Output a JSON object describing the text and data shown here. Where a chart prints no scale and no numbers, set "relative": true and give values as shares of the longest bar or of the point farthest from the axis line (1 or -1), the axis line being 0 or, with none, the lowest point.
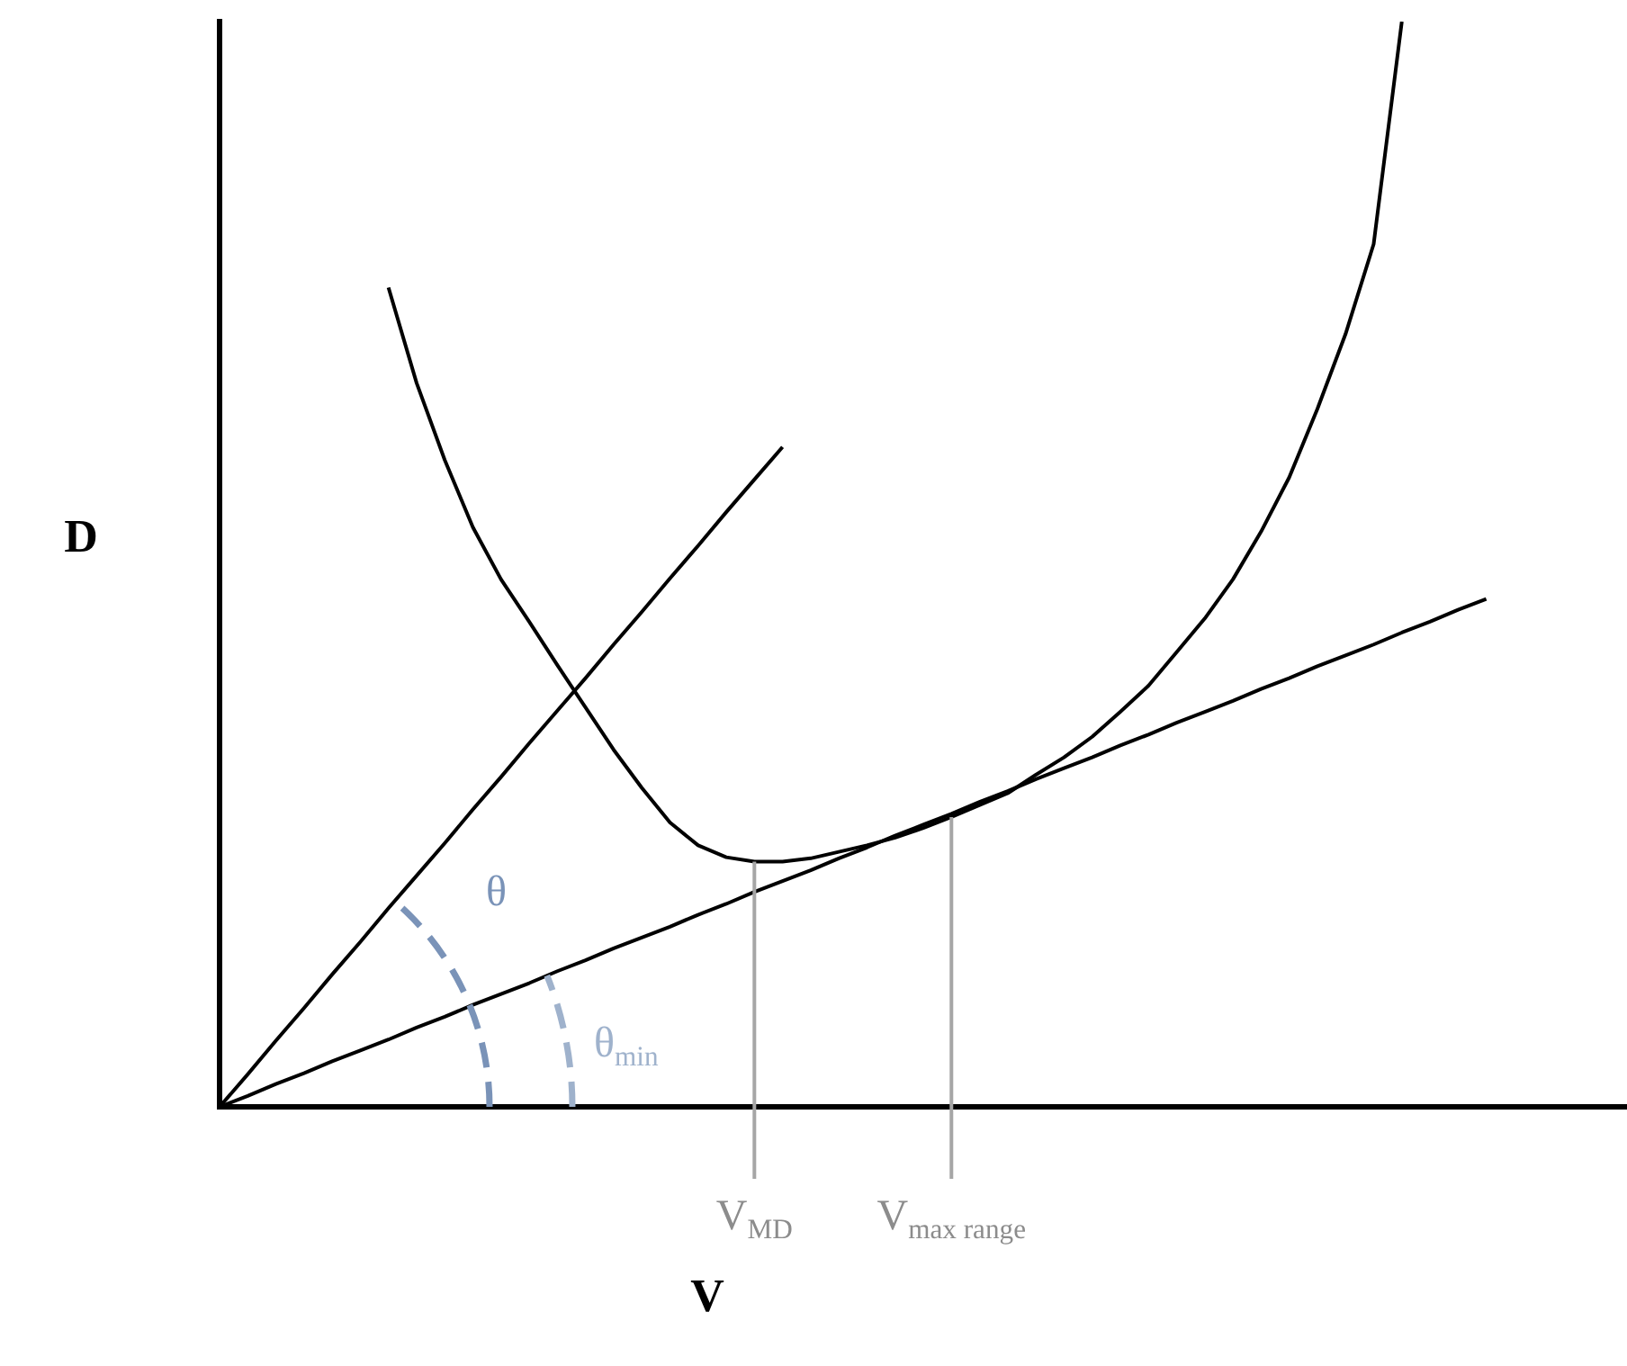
{
  "chart_data": {
    "type": "line",
    "relative": true,
    "xlabel": "V",
    "ylabel": "D",
    "grid": false,
    "legend": false,
    "marker": "none",
    "line_style": "solid",
    "categories": [
      null,
      null,
      null,
      null,
      null,
      null,
      null,
      null,
      null,
      null,
      null,
      null,
      null,
      null,
      null,
      null,
      null,
      null,
      null,
      "V$_{MD}$",
      null,
      null,
      null,
      null,
      null,
      null,
      "V$_{max range}$",
      null,
      null,
      null,
      null,
      null,
      null,
      null,
      null,
      null,
      null,
      null,
      null,
      null,
      null,
      null,
      null,
      null,
      null,
      null,
      null,
      null,
      null,
      null,
      null
    ],
    "series": [
      {
        "color": "#000000",
        "values": [
          null,
          null,
          null,
          null,
          null,
          null,
          0.755,
          0.667,
          0.596,
          0.534,
          0.486,
          0.447,
          0.407,
          0.368,
          0.329,
          0.294,
          0.262,
          0.241,
          0.23,
          0.226,
          0.226,
          0.229,
          0.235,
          0.241,
          0.248,
          0.257,
          0.267,
          0.278,
          0.289,
          0.306,
          0.322,
          0.341,
          0.364,
          0.388,
          0.419,
          0.45,
          0.486,
          0.53,
          0.58,
          0.643,
          0.712,
          0.795,
          1.0,
          null,
          null,
          null,
          null,
          null,
          null,
          null,
          null
        ]
      },
      {
        "color": "#000000",
        "values": [
          0,
          0.03,
          0.061,
          0.091,
          0.122,
          0.152,
          0.183,
          0.213,
          0.243,
          0.274,
          0.304,
          0.335,
          0.365,
          0.395,
          0.426,
          0.456,
          0.487,
          0.517,
          0.548,
          0.578,
          0.608,
          null,
          null,
          null,
          null,
          null,
          null,
          null,
          null,
          null,
          null,
          null,
          null,
          null,
          null,
          null,
          null,
          null,
          null,
          null,
          null,
          null,
          null,
          null,
          null,
          null,
          null,
          null,
          null,
          null,
          null
        ]
      },
      {
        "color": "#000000",
        "values": [
          0,
          0.01,
          0.021,
          0.031,
          0.042,
          0.052,
          0.062,
          0.073,
          0.083,
          0.094,
          0.104,
          0.114,
          0.125,
          0.135,
          0.146,
          0.156,
          0.166,
          0.177,
          0.187,
          0.198,
          0.208,
          0.218,
          0.229,
          0.239,
          0.25,
          0.26,
          0.27,
          0.281,
          0.291,
          0.302,
          0.312,
          0.322,
          0.333,
          0.343,
          0.354,
          0.364,
          0.374,
          0.385,
          0.395,
          0.406,
          0.416,
          0.426,
          0.437,
          0.447,
          0.458,
          0.468,
          null,
          null,
          null,
          null,
          null
        ]
      }
    ],
    "ref_lines": [
      {
        "axis": "x",
        "value": "V$_{MD}$",
        "color": "#a6a6a6"
      },
      {
        "axis": "x",
        "value": "V$_{max range}$",
        "color": "#a6a6a6"
      }
    ],
    "annotations": [
      "θ",
      "θ$_{min}$"
    ]
  }
}
